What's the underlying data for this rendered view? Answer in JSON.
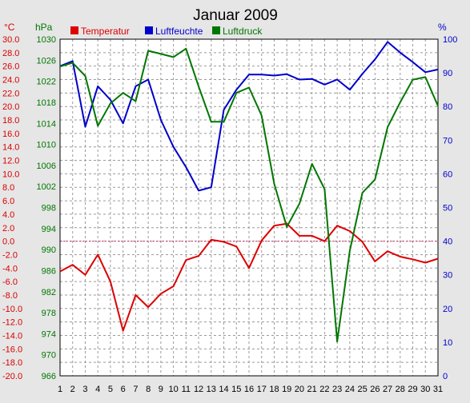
{
  "chart_data": {
    "type": "line",
    "title": "Januar 2009",
    "legend": [
      {
        "label": "Temperatur",
        "color": "#dd0000"
      },
      {
        "label": "Luftfeuchte",
        "color": "#0000cc"
      },
      {
        "label": "Luftdruck",
        "color": "#007700"
      }
    ],
    "x": [
      1,
      2,
      3,
      4,
      5,
      6,
      7,
      8,
      9,
      10,
      11,
      12,
      13,
      14,
      15,
      16,
      17,
      18,
      19,
      20,
      21,
      22,
      23,
      24,
      25,
      26,
      27,
      28,
      29,
      30,
      31
    ],
    "axes": {
      "temperature": {
        "unit_label": "°C",
        "color": "#dd0000",
        "min": -20,
        "max": 30,
        "step": 2,
        "ticks": [
          "-20.0",
          "-18.0",
          "-16.0",
          "-14.0",
          "-12.0",
          "-10.0",
          "-8.0",
          "-6.0",
          "-4.0",
          "-2.0",
          "0.0",
          "2.0",
          "4.0",
          "6.0",
          "8.0",
          "10.0",
          "12.0",
          "14.0",
          "16.0",
          "18.0",
          "20.0",
          "22.0",
          "24.0",
          "26.0",
          "28.0",
          "30.0"
        ]
      },
      "pressure": {
        "unit_label": "hPa",
        "color": "#007700",
        "min": 966,
        "max": 1030,
        "step": 4,
        "ticks": [
          "966",
          "970",
          "974",
          "978",
          "982",
          "986",
          "990",
          "994",
          "998",
          "1002",
          "1006",
          "1010",
          "1014",
          "1018",
          "1022",
          "1026",
          "1030"
        ]
      },
      "humidity": {
        "unit_label": "%",
        "color": "#0000cc",
        "min": 0,
        "max": 100,
        "step": 10,
        "ticks": [
          "0",
          "10",
          "20",
          "30",
          "40",
          "50",
          "60",
          "70",
          "80",
          "90",
          "100"
        ]
      }
    },
    "series": [
      {
        "name": "Temperatur",
        "axis": "temperature",
        "color": "#dd0000",
        "values": [
          -4.5,
          -3.5,
          -5.0,
          -2.0,
          -6.0,
          -13.3,
          -8.0,
          -9.8,
          -7.8,
          -6.7,
          -2.8,
          -2.2,
          0.2,
          -0.1,
          -0.8,
          -4.0,
          0.1,
          2.3,
          2.6,
          0.8,
          0.8,
          0.0,
          2.3,
          1.5,
          -0.1,
          -3.0,
          -1.5,
          -2.3,
          -2.7,
          -3.2,
          -2.6
        ]
      },
      {
        "name": "Luftfeuchte",
        "axis": "humidity",
        "color": "#0000cc",
        "values": [
          92,
          93.5,
          74,
          86,
          82,
          75,
          86,
          88,
          76,
          68,
          62,
          55,
          56,
          79,
          85,
          89.5,
          89.5,
          89.2,
          89.6,
          88,
          88.2,
          86.5,
          88,
          85,
          89.7,
          94,
          99.2,
          96,
          93.2,
          90.2,
          91
        ]
      },
      {
        "name": "Luftdruck",
        "axis": "pressure",
        "color": "#007700",
        "values": [
          1024.8,
          1025.5,
          1023,
          1013.5,
          1017.8,
          1019.8,
          1018.2,
          1027.8,
          1027.2,
          1026.6,
          1028.2,
          1021,
          1014.3,
          1014.3,
          1019.8,
          1020.8,
          1015.5,
          1002.5,
          994.3,
          998.7,
          1006.3,
          1001.5,
          972.5,
          989.8,
          1000.8,
          1003.3,
          1013.3,
          1018,
          1022.3,
          1022.8,
          1017.3
        ]
      }
    ],
    "zero_line": 0.0,
    "grid": true
  }
}
